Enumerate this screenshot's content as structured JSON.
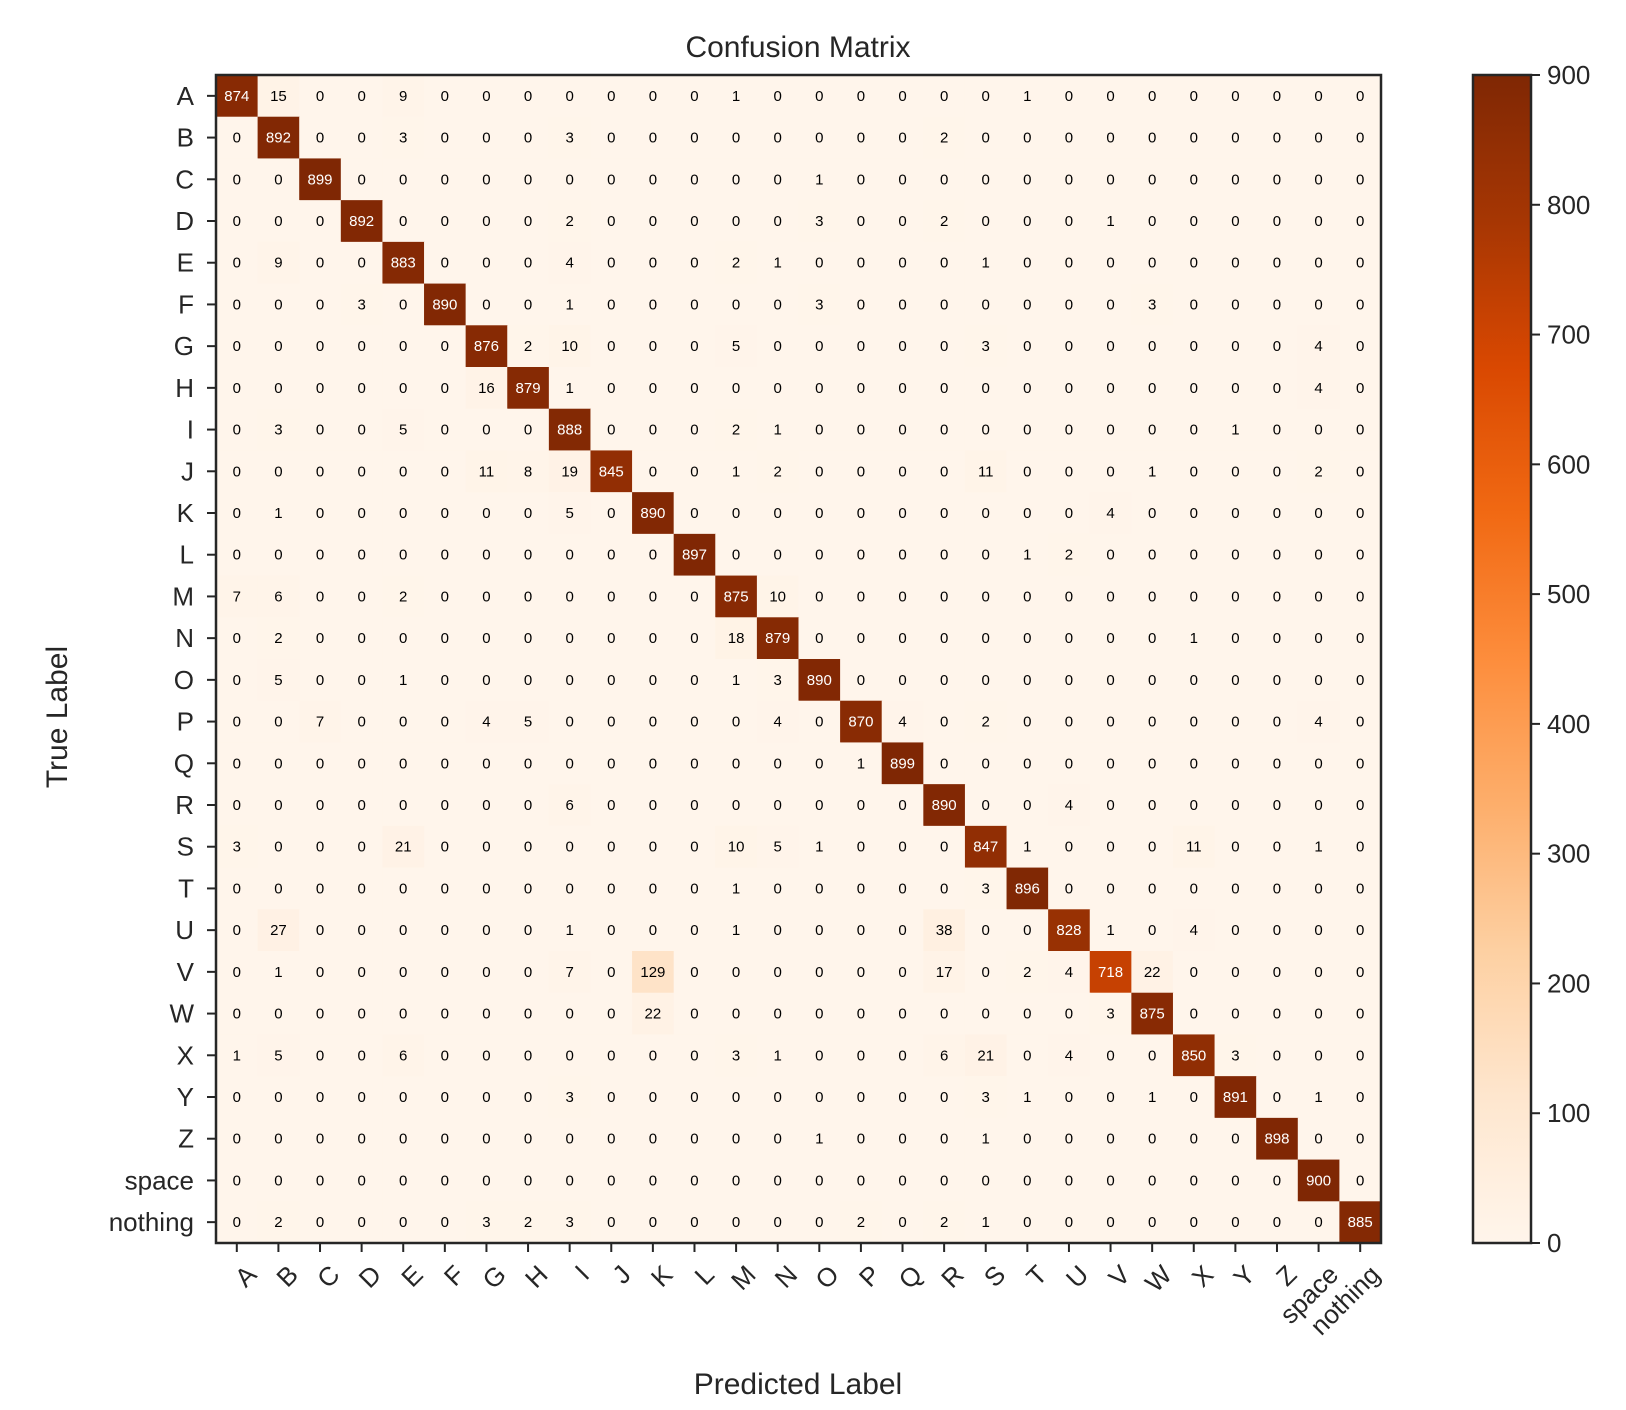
{
  "chart_data": {
    "type": "heatmap",
    "title": "Confusion Matrix",
    "xlabel": "Predicted Label",
    "ylabel": "True Label",
    "labels": [
      "A",
      "B",
      "C",
      "D",
      "E",
      "F",
      "G",
      "H",
      "I",
      "J",
      "K",
      "L",
      "M",
      "N",
      "O",
      "P",
      "Q",
      "R",
      "S",
      "T",
      "U",
      "V",
      "W",
      "X",
      "Y",
      "Z",
      "space",
      "nothing"
    ],
    "matrix": [
      [
        874,
        15,
        0,
        0,
        9,
        0,
        0,
        0,
        0,
        0,
        0,
        0,
        1,
        0,
        0,
        0,
        0,
        0,
        0,
        1,
        0,
        0,
        0,
        0,
        0,
        0,
        0,
        0
      ],
      [
        0,
        892,
        0,
        0,
        3,
        0,
        0,
        0,
        3,
        0,
        0,
        0,
        0,
        0,
        0,
        0,
        0,
        2,
        0,
        0,
        0,
        0,
        0,
        0,
        0,
        0,
        0,
        0
      ],
      [
        0,
        0,
        899,
        0,
        0,
        0,
        0,
        0,
        0,
        0,
        0,
        0,
        0,
        0,
        1,
        0,
        0,
        0,
        0,
        0,
        0,
        0,
        0,
        0,
        0,
        0,
        0,
        0
      ],
      [
        0,
        0,
        0,
        892,
        0,
        0,
        0,
        0,
        2,
        0,
        0,
        0,
        0,
        0,
        3,
        0,
        0,
        2,
        0,
        0,
        0,
        1,
        0,
        0,
        0,
        0,
        0,
        0
      ],
      [
        0,
        9,
        0,
        0,
        883,
        0,
        0,
        0,
        4,
        0,
        0,
        0,
        2,
        1,
        0,
        0,
        0,
        0,
        1,
        0,
        0,
        0,
        0,
        0,
        0,
        0,
        0,
        0
      ],
      [
        0,
        0,
        0,
        3,
        0,
        890,
        0,
        0,
        1,
        0,
        0,
        0,
        0,
        0,
        3,
        0,
        0,
        0,
        0,
        0,
        0,
        0,
        3,
        0,
        0,
        0,
        0,
        0
      ],
      [
        0,
        0,
        0,
        0,
        0,
        0,
        876,
        2,
        10,
        0,
        0,
        0,
        5,
        0,
        0,
        0,
        0,
        0,
        3,
        0,
        0,
        0,
        0,
        0,
        0,
        0,
        4,
        0
      ],
      [
        0,
        0,
        0,
        0,
        0,
        0,
        16,
        879,
        1,
        0,
        0,
        0,
        0,
        0,
        0,
        0,
        0,
        0,
        0,
        0,
        0,
        0,
        0,
        0,
        0,
        0,
        4,
        0
      ],
      [
        0,
        3,
        0,
        0,
        5,
        0,
        0,
        0,
        888,
        0,
        0,
        0,
        2,
        1,
        0,
        0,
        0,
        0,
        0,
        0,
        0,
        0,
        0,
        0,
        1,
        0,
        0,
        0
      ],
      [
        0,
        0,
        0,
        0,
        0,
        0,
        11,
        8,
        19,
        845,
        0,
        0,
        1,
        2,
        0,
        0,
        0,
        0,
        11,
        0,
        0,
        0,
        1,
        0,
        0,
        0,
        2,
        0
      ],
      [
        0,
        1,
        0,
        0,
        0,
        0,
        0,
        0,
        5,
        0,
        890,
        0,
        0,
        0,
        0,
        0,
        0,
        0,
        0,
        0,
        0,
        4,
        0,
        0,
        0,
        0,
        0,
        0
      ],
      [
        0,
        0,
        0,
        0,
        0,
        0,
        0,
        0,
        0,
        0,
        0,
        897,
        0,
        0,
        0,
        0,
        0,
        0,
        0,
        1,
        2,
        0,
        0,
        0,
        0,
        0,
        0,
        0
      ],
      [
        7,
        6,
        0,
        0,
        2,
        0,
        0,
        0,
        0,
        0,
        0,
        0,
        875,
        10,
        0,
        0,
        0,
        0,
        0,
        0,
        0,
        0,
        0,
        0,
        0,
        0,
        0,
        0
      ],
      [
        0,
        2,
        0,
        0,
        0,
        0,
        0,
        0,
        0,
        0,
        0,
        0,
        18,
        879,
        0,
        0,
        0,
        0,
        0,
        0,
        0,
        0,
        0,
        1,
        0,
        0,
        0,
        0
      ],
      [
        0,
        5,
        0,
        0,
        1,
        0,
        0,
        0,
        0,
        0,
        0,
        0,
        1,
        3,
        890,
        0,
        0,
        0,
        0,
        0,
        0,
        0,
        0,
        0,
        0,
        0,
        0,
        0
      ],
      [
        0,
        0,
        7,
        0,
        0,
        0,
        4,
        5,
        0,
        0,
        0,
        0,
        0,
        4,
        0,
        870,
        4,
        0,
        2,
        0,
        0,
        0,
        0,
        0,
        0,
        0,
        4,
        0
      ],
      [
        0,
        0,
        0,
        0,
        0,
        0,
        0,
        0,
        0,
        0,
        0,
        0,
        0,
        0,
        0,
        1,
        899,
        0,
        0,
        0,
        0,
        0,
        0,
        0,
        0,
        0,
        0,
        0
      ],
      [
        0,
        0,
        0,
        0,
        0,
        0,
        0,
        0,
        6,
        0,
        0,
        0,
        0,
        0,
        0,
        0,
        0,
        890,
        0,
        0,
        4,
        0,
        0,
        0,
        0,
        0,
        0,
        0
      ],
      [
        3,
        0,
        0,
        0,
        21,
        0,
        0,
        0,
        0,
        0,
        0,
        0,
        10,
        5,
        1,
        0,
        0,
        0,
        847,
        1,
        0,
        0,
        0,
        11,
        0,
        0,
        1,
        0
      ],
      [
        0,
        0,
        0,
        0,
        0,
        0,
        0,
        0,
        0,
        0,
        0,
        0,
        1,
        0,
        0,
        0,
        0,
        0,
        3,
        896,
        0,
        0,
        0,
        0,
        0,
        0,
        0,
        0
      ],
      [
        0,
        27,
        0,
        0,
        0,
        0,
        0,
        0,
        1,
        0,
        0,
        0,
        1,
        0,
        0,
        0,
        0,
        38,
        0,
        0,
        828,
        1,
        0,
        4,
        0,
        0,
        0,
        0
      ],
      [
        0,
        1,
        0,
        0,
        0,
        0,
        0,
        0,
        7,
        0,
        129,
        0,
        0,
        0,
        0,
        0,
        0,
        17,
        0,
        2,
        4,
        718,
        22,
        0,
        0,
        0,
        0,
        0
      ],
      [
        0,
        0,
        0,
        0,
        0,
        0,
        0,
        0,
        0,
        0,
        22,
        0,
        0,
        0,
        0,
        0,
        0,
        0,
        0,
        0,
        0,
        3,
        875,
        0,
        0,
        0,
        0,
        0
      ],
      [
        1,
        5,
        0,
        0,
        6,
        0,
        0,
        0,
        0,
        0,
        0,
        0,
        3,
        1,
        0,
        0,
        0,
        6,
        21,
        0,
        4,
        0,
        0,
        850,
        3,
        0,
        0,
        0
      ],
      [
        0,
        0,
        0,
        0,
        0,
        0,
        0,
        0,
        3,
        0,
        0,
        0,
        0,
        0,
        0,
        0,
        0,
        0,
        3,
        1,
        0,
        0,
        1,
        0,
        891,
        0,
        1,
        0
      ],
      [
        0,
        0,
        0,
        0,
        0,
        0,
        0,
        0,
        0,
        0,
        0,
        0,
        0,
        0,
        1,
        0,
        0,
        0,
        1,
        0,
        0,
        0,
        0,
        0,
        0,
        898,
        0,
        0
      ],
      [
        0,
        0,
        0,
        0,
        0,
        0,
        0,
        0,
        0,
        0,
        0,
        0,
        0,
        0,
        0,
        0,
        0,
        0,
        0,
        0,
        0,
        0,
        0,
        0,
        0,
        0,
        900,
        0
      ],
      [
        0,
        2,
        0,
        0,
        0,
        0,
        3,
        2,
        3,
        0,
        0,
        0,
        0,
        0,
        0,
        2,
        0,
        2,
        1,
        0,
        0,
        0,
        0,
        0,
        0,
        0,
        0,
        885
      ]
    ],
    "colorbar": {
      "min": 0,
      "max": 900,
      "ticks": [
        0,
        100,
        200,
        300,
        400,
        500,
        600,
        700,
        800,
        900
      ],
      "colormap": "Oranges"
    },
    "grid": false,
    "legend": "none"
  },
  "colors": {
    "low": "#fff5eb",
    "high": "#7f2704",
    "axis": "#262626"
  }
}
